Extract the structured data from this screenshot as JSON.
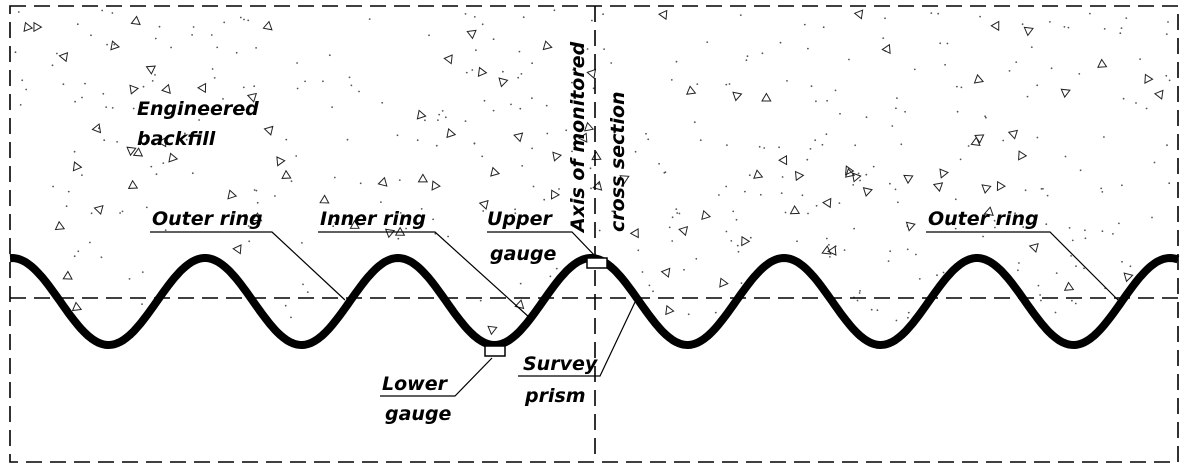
{
  "labels": {
    "backfill": [
      "Engineered",
      "backfill"
    ],
    "outer_ring_left": "Outer ring",
    "inner_ring": "Inner ring",
    "upper_gauge": [
      "Upper",
      "gauge"
    ],
    "axis": [
      "Axis of monitored",
      "cross section"
    ],
    "outer_ring_right": "Outer ring",
    "lower_gauge": [
      "Lower",
      "gauge"
    ],
    "survey_prism": [
      "Survey",
      "prism"
    ]
  }
}
